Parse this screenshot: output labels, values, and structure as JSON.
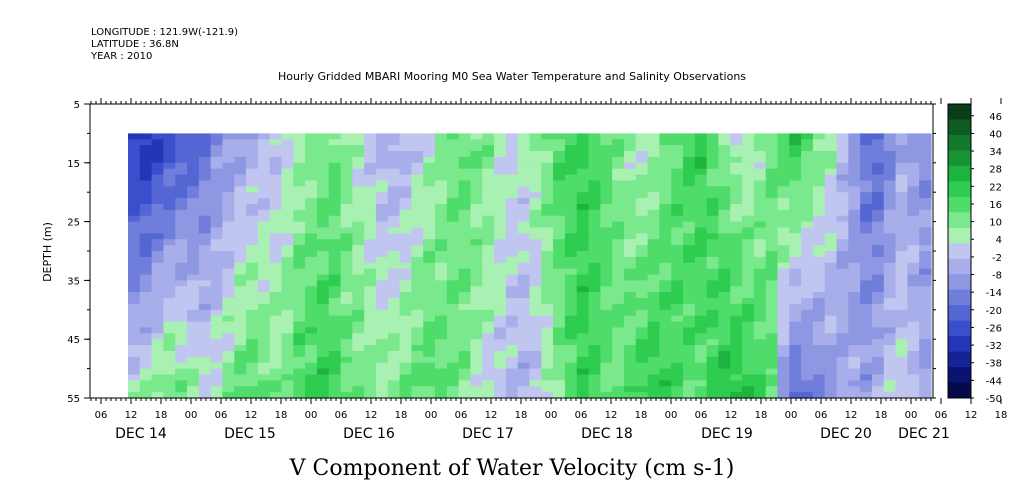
{
  "meta": {
    "longitude": "LONGITUDE : 121.9W(-121.9)",
    "latitude": "LATITUDE : 36.8N",
    "year": "YEAR : 2010"
  },
  "chart_data": {
    "type": "heatmap",
    "title": "Hourly Gridded MBARI Mooring M0 Sea Water Temperature and Salinity Observations",
    "xlabel": "V Component of Water Velocity (cm s-1)",
    "ylabel": "DEPTH (m)",
    "y_ticks": [
      "5",
      "15",
      "25",
      "35",
      "45",
      "55"
    ],
    "ylim": [
      55,
      5
    ],
    "hour_ticks": [
      "06",
      "12",
      "18",
      "00",
      "06",
      "12",
      "18",
      "00",
      "06",
      "12",
      "18",
      "00",
      "06",
      "12",
      "18",
      "00",
      "06",
      "12",
      "18",
      "00",
      "06",
      "12",
      "18",
      "00",
      "06",
      "12",
      "18",
      "00",
      "06",
      "12",
      "18",
      "00"
    ],
    "day_labels": [
      "DEC 14",
      "DEC 15",
      "DEC 16",
      "DEC 17",
      "DEC 18",
      "DEC 19",
      "DEC 20",
      "DEC 21"
    ],
    "data_depth_range": [
      10,
      55
    ],
    "colorbar": {
      "ticks": [
        "46",
        "40",
        "34",
        "28",
        "22",
        "16",
        "10",
        "4",
        "-2",
        "-8",
        "-14",
        "-20",
        "-26",
        "-32",
        "-38",
        "-44",
        "-50"
      ],
      "range": [
        -50,
        50
      ],
      "colors": [
        "#0a3d1a",
        "#0f5c22",
        "#12782b",
        "#179534",
        "#1db33e",
        "#2ecc4f",
        "#4fdc6b",
        "#7ae88c",
        "#a9f1b2",
        "#c0c6f0",
        "#a8aee9",
        "#8e97e2",
        "#6f7ddb",
        "#5366d3",
        "#3a4fcb",
        "#2436b8",
        "#142396",
        "#0a1470",
        "#050b4a"
      ]
    },
    "v_profile_surface": [
      -32,
      -34,
      -30,
      -28,
      -24,
      -22,
      -18,
      -14,
      -10,
      -8,
      -6,
      -4,
      -2,
      2,
      6,
      8,
      10,
      12,
      8,
      4,
      0,
      -4,
      -6,
      -4,
      0,
      4,
      8,
      12,
      14,
      12,
      10,
      6,
      2,
      4,
      8,
      12,
      16,
      18,
      20,
      18,
      14,
      10,
      6,
      4,
      6,
      10,
      14,
      18,
      20,
      16,
      10,
      4,
      2,
      6,
      12,
      18,
      22,
      18,
      12,
      6,
      -2,
      -10,
      -18,
      -20,
      -14,
      -6,
      -10,
      -12
    ],
    "v_profile_bottom": [
      4,
      6,
      10,
      14,
      12,
      8,
      4,
      6,
      10,
      14,
      16,
      14,
      10,
      12,
      16,
      18,
      20,
      18,
      14,
      12,
      10,
      8,
      10,
      12,
      14,
      16,
      14,
      12,
      10,
      6,
      2,
      0,
      -2,
      -4,
      -2,
      4,
      10,
      16,
      20,
      18,
      14,
      12,
      16,
      20,
      22,
      20,
      18,
      16,
      14,
      18,
      22,
      24,
      22,
      18,
      14,
      -10,
      -20,
      -18,
      -14,
      -10,
      -8,
      -6,
      -8,
      -4,
      0,
      2,
      0,
      -6
    ]
  }
}
